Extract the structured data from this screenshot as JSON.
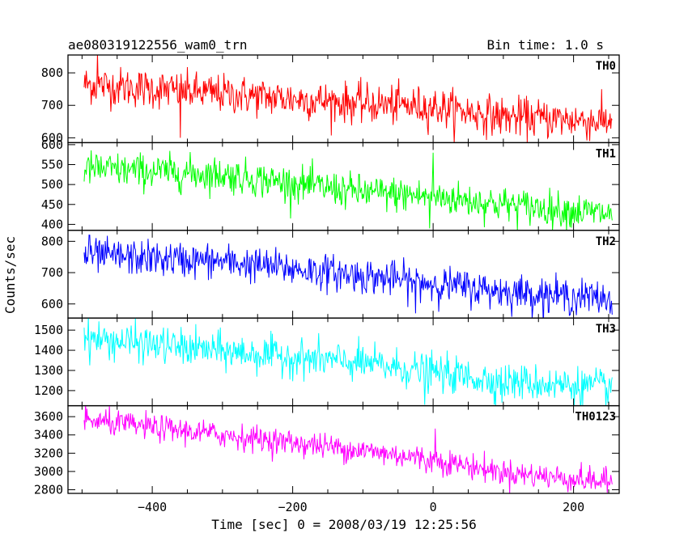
{
  "header": {
    "title": "ae080319122556_wam0_trn",
    "bin_time": "Bin time: 1.0 s"
  },
  "chart_data": {
    "type": "line",
    "xlabel": "Time [sec] 0 = 2008/03/19 12:25:56",
    "ylabel": "Counts/sec",
    "xlim": [
      -520,
      265
    ],
    "x_start": -497,
    "x_end": 255,
    "xticks": [
      -400,
      -200,
      0,
      200
    ],
    "xtick_labels": [
      "−400",
      "−200",
      "0",
      "200"
    ],
    "panels": [
      {
        "name": "TH0",
        "color": "#ff0000",
        "ylim": [
          585,
          855
        ],
        "yticks": [
          600,
          700,
          800
        ],
        "trend": [
          [
            -497,
            765
          ],
          [
            -300,
            735
          ],
          [
            -100,
            705
          ],
          [
            0,
            695
          ],
          [
            100,
            665
          ],
          [
            255,
            650
          ]
        ],
        "noise": 30,
        "spikes": [
          [
            -478,
            860
          ],
          [
            -360,
            600
          ]
        ]
      },
      {
        "name": "TH1",
        "color": "#00ff00",
        "ylim": [
          385,
          605
        ],
        "yticks": [
          400,
          450,
          500,
          550,
          600
        ],
        "trend": [
          [
            -497,
            540
          ],
          [
            -300,
            525
          ],
          [
            -100,
            480
          ],
          [
            0,
            470
          ],
          [
            100,
            450
          ],
          [
            255,
            425
          ]
        ],
        "noise": 22,
        "spikes": [
          [
            0,
            580
          ],
          [
            -5,
            390
          ]
        ]
      },
      {
        "name": "TH2",
        "color": "#0000ff",
        "ylim": [
          555,
          835
        ],
        "yticks": [
          600,
          700,
          800
        ],
        "trend": [
          [
            -497,
            755
          ],
          [
            -300,
            735
          ],
          [
            -100,
            690
          ],
          [
            0,
            665
          ],
          [
            100,
            640
          ],
          [
            255,
            615
          ]
        ],
        "noise": 28,
        "spikes": [
          [
            -490,
            820
          ],
          [
            -25,
            570
          ]
        ]
      },
      {
        "name": "TH3",
        "color": "#00ffff",
        "ylim": [
          1125,
          1560
        ],
        "yticks": [
          1200,
          1300,
          1400,
          1500
        ],
        "trend": [
          [
            -497,
            1460
          ],
          [
            -300,
            1395
          ],
          [
            -100,
            1335
          ],
          [
            0,
            1290
          ],
          [
            100,
            1245
          ],
          [
            255,
            1215
          ]
        ],
        "noise": 45,
        "spikes": [
          [
            -12,
            1130
          ],
          [
            98,
            1140
          ]
        ]
      },
      {
        "name": "TH0123",
        "color": "#ff00ff",
        "ylim": [
          2760,
          3720
        ],
        "yticks": [
          2800,
          3000,
          3200,
          3400,
          3600
        ],
        "trend": [
          [
            -497,
            3560
          ],
          [
            -300,
            3400
          ],
          [
            -100,
            3230
          ],
          [
            0,
            3130
          ],
          [
            100,
            2990
          ],
          [
            255,
            2880
          ]
        ],
        "noise": 70,
        "spikes": [
          [
            3,
            3470
          ],
          [
            -10,
            2980
          ]
        ]
      }
    ]
  }
}
